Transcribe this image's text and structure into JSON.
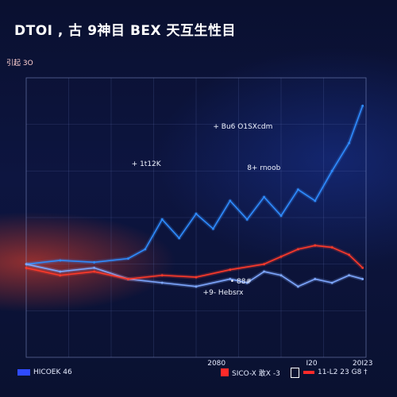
{
  "title": "DTOI , 古 9神目 BEX 天互生性目",
  "y_axis_label": "引起 3O",
  "chart_data": {
    "type": "line",
    "title": "DTOI , 古 9神目 BEX 天互生性目",
    "ylabel": "引起 3O",
    "xlabel": "",
    "x_ticks": [
      {
        "x": 56,
        "label": "2080"
      },
      {
        "x": 84,
        "label": "I20"
      },
      {
        "x": 99,
        "label": "20I23"
      }
    ],
    "xlim": [
      0,
      100
    ],
    "ylim": [
      -50,
      100
    ],
    "grid": true,
    "annotations": [
      {
        "text": "+ Bu6 O1SXcdm",
        "x": 55,
        "y": 73
      },
      {
        "text": "+ 1t12K",
        "x": 31,
        "y": 53
      },
      {
        "text": "8+ rnoob",
        "x": 65,
        "y": 51
      },
      {
        "text": "• 88#",
        "x": 60,
        "y": -10
      },
      {
        "text": "+9- Hebsrx",
        "x": 52,
        "y": -16
      }
    ],
    "series": [
      {
        "color": "#2f8cff",
        "x": [
          0,
          10,
          20,
          30,
          35,
          40,
          45,
          50,
          55,
          60,
          65,
          70,
          75,
          80,
          85,
          90,
          95,
          99
        ],
        "values": [
          0,
          2,
          1,
          3,
          8,
          24,
          14,
          27,
          19,
          34,
          24,
          36,
          26,
          40,
          34,
          50,
          65,
          85
        ]
      },
      {
        "color": "#7fa8ff",
        "x": [
          0,
          10,
          20,
          30,
          40,
          50,
          60,
          65,
          70,
          75,
          80,
          85,
          90,
          95,
          99
        ],
        "values": [
          0,
          -4,
          -2,
          -8,
          -10,
          -12,
          -8,
          -10,
          -4,
          -6,
          -12,
          -8,
          -10,
          -6,
          -8
        ]
      },
      {
        "color": "#ff3a2a",
        "x": [
          0,
          10,
          20,
          30,
          40,
          50,
          60,
          70,
          75,
          80,
          85,
          90,
          95,
          99
        ],
        "values": [
          -2,
          -6,
          -4,
          -8,
          -6,
          -7,
          -3,
          0,
          4,
          8,
          10,
          9,
          5,
          -2
        ]
      }
    ]
  },
  "legend": [
    {
      "label": "HICOEK 46",
      "color": "#2f4bff"
    },
    {
      "label": "SICO-X 敢X  -3",
      "color": "#ff2a2a"
    },
    {
      "label": "",
      "color": "#ffffff",
      "outline": true
    },
    {
      "label": "11-L2 23 G8 †",
      "color": "#ff2a2a"
    }
  ]
}
